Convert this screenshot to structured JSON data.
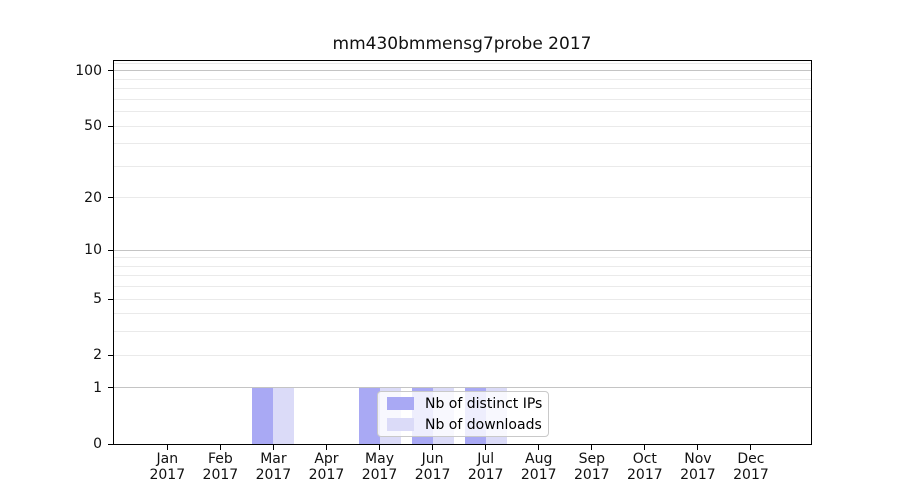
{
  "title": "mm430bmmensg7probe 2017",
  "chart_data": {
    "type": "bar",
    "title": "mm430bmmensg7probe 2017",
    "categories": [
      "Jan 2017",
      "Feb 2017",
      "Mar 2017",
      "Apr 2017",
      "May 2017",
      "Jun 2017",
      "Jul 2017",
      "Aug 2017",
      "Sep 2017",
      "Oct 2017",
      "Nov 2017",
      "Dec 2017"
    ],
    "series": [
      {
        "name": "Nb of distinct IPs",
        "color": "#a9a9f4",
        "values": [
          0,
          0,
          1,
          0,
          1,
          1,
          1,
          0,
          0,
          0,
          0,
          0
        ]
      },
      {
        "name": "Nb of downloads",
        "color": "#dbdbf8",
        "values": [
          0,
          0,
          1,
          0,
          1,
          1,
          1,
          0,
          0,
          0,
          0,
          0
        ]
      }
    ],
    "xlabel": "",
    "ylabel": "",
    "yscale": "log1p",
    "ylim": [
      0,
      113
    ],
    "yticks": [
      0,
      1,
      2,
      5,
      10,
      20,
      50,
      100
    ],
    "grid_major": [
      1,
      10,
      100
    ],
    "grid_minor": [
      2,
      3,
      4,
      5,
      6,
      7,
      8,
      9,
      20,
      30,
      40,
      50,
      60,
      70,
      80,
      90,
      110
    ],
    "grid": "horizontal major+minor",
    "legend_position": "inside lower center",
    "colors": {
      "major_grid": "#c4c4c4",
      "minor_grid": "#eaeaea",
      "spine": "#000000",
      "title_text": "#111111",
      "tick_text": "#111111"
    }
  }
}
